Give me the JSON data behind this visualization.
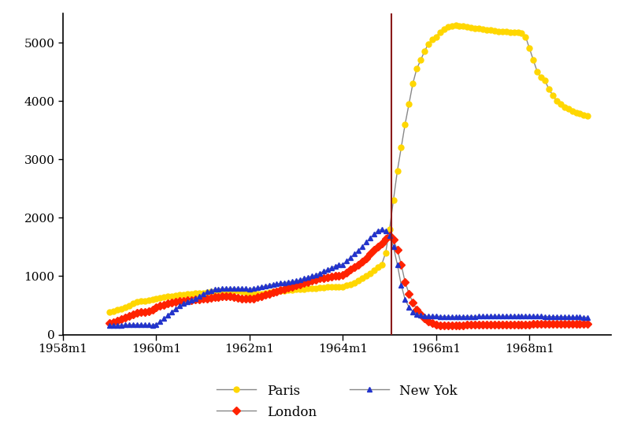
{
  "title": "",
  "ylim": [
    0,
    5500
  ],
  "xlim_start": 1958.0,
  "xlim_end": 1969.75,
  "vline_x": 1965.0417,
  "vline_color": "#8B1A1A",
  "background_color": "#ffffff",
  "xtick_labels": [
    "1958m1",
    "1960m1",
    "1962m1",
    "1964m1",
    "1966m1",
    "1968m1"
  ],
  "xtick_positions": [
    1958.0,
    1960.0,
    1962.0,
    1964.0,
    1966.0,
    1968.0
  ],
  "paris_color": "#FFD700",
  "london_color": "#FF2200",
  "newyork_color": "#2233CC",
  "line_color": "#888888",
  "marker_size_paris": 5,
  "marker_size_london": 5,
  "marker_size_newyork": 5,
  "paris_data": [
    [
      1959.0,
      390
    ],
    [
      1959.083,
      400
    ],
    [
      1959.167,
      420
    ],
    [
      1959.25,
      440
    ],
    [
      1959.333,
      460
    ],
    [
      1959.417,
      490
    ],
    [
      1959.5,
      530
    ],
    [
      1959.583,
      560
    ],
    [
      1959.667,
      570
    ],
    [
      1959.75,
      580
    ],
    [
      1959.833,
      590
    ],
    [
      1959.917,
      600
    ],
    [
      1960.0,
      620
    ],
    [
      1960.083,
      630
    ],
    [
      1960.167,
      640
    ],
    [
      1960.25,
      650
    ],
    [
      1960.333,
      660
    ],
    [
      1960.417,
      670
    ],
    [
      1960.5,
      680
    ],
    [
      1960.583,
      680
    ],
    [
      1960.667,
      690
    ],
    [
      1960.75,
      700
    ],
    [
      1960.833,
      710
    ],
    [
      1960.917,
      710
    ],
    [
      1961.0,
      710
    ],
    [
      1961.083,
      720
    ],
    [
      1961.167,
      730
    ],
    [
      1961.25,
      740
    ],
    [
      1961.333,
      745
    ],
    [
      1961.417,
      750
    ],
    [
      1961.5,
      755
    ],
    [
      1961.583,
      755
    ],
    [
      1961.667,
      750
    ],
    [
      1961.75,
      745
    ],
    [
      1961.833,
      740
    ],
    [
      1961.917,
      720
    ],
    [
      1962.0,
      700
    ],
    [
      1962.083,
      690
    ],
    [
      1962.167,
      690
    ],
    [
      1962.25,
      700
    ],
    [
      1962.333,
      710
    ],
    [
      1962.417,
      720
    ],
    [
      1962.5,
      730
    ],
    [
      1962.583,
      740
    ],
    [
      1962.667,
      750
    ],
    [
      1962.75,
      755
    ],
    [
      1962.833,
      760
    ],
    [
      1962.917,
      765
    ],
    [
      1963.0,
      770
    ],
    [
      1963.083,
      775
    ],
    [
      1963.167,
      780
    ],
    [
      1963.25,
      785
    ],
    [
      1963.333,
      790
    ],
    [
      1963.417,
      795
    ],
    [
      1963.5,
      800
    ],
    [
      1963.583,
      805
    ],
    [
      1963.667,
      810
    ],
    [
      1963.75,
      815
    ],
    [
      1963.833,
      820
    ],
    [
      1963.917,
      820
    ],
    [
      1964.0,
      820
    ],
    [
      1964.083,
      840
    ],
    [
      1964.167,
      860
    ],
    [
      1964.25,
      890
    ],
    [
      1964.333,
      920
    ],
    [
      1964.417,
      960
    ],
    [
      1964.5,
      1000
    ],
    [
      1964.583,
      1050
    ],
    [
      1964.667,
      1100
    ],
    [
      1964.75,
      1150
    ],
    [
      1964.833,
      1200
    ],
    [
      1964.917,
      1400
    ],
    [
      1965.0,
      1800
    ],
    [
      1965.083,
      2300
    ],
    [
      1965.167,
      2800
    ],
    [
      1965.25,
      3200
    ],
    [
      1965.333,
      3600
    ],
    [
      1965.417,
      3950
    ],
    [
      1965.5,
      4300
    ],
    [
      1965.583,
      4550
    ],
    [
      1965.667,
      4700
    ],
    [
      1965.75,
      4850
    ],
    [
      1965.833,
      4980
    ],
    [
      1965.917,
      5050
    ],
    [
      1966.0,
      5100
    ],
    [
      1966.083,
      5180
    ],
    [
      1966.167,
      5230
    ],
    [
      1966.25,
      5270
    ],
    [
      1966.333,
      5290
    ],
    [
      1966.417,
      5300
    ],
    [
      1966.5,
      5290
    ],
    [
      1966.583,
      5280
    ],
    [
      1966.667,
      5270
    ],
    [
      1966.75,
      5260
    ],
    [
      1966.833,
      5250
    ],
    [
      1966.917,
      5240
    ],
    [
      1967.0,
      5230
    ],
    [
      1967.083,
      5220
    ],
    [
      1967.167,
      5210
    ],
    [
      1967.25,
      5200
    ],
    [
      1967.333,
      5195
    ],
    [
      1967.417,
      5190
    ],
    [
      1967.5,
      5185
    ],
    [
      1967.583,
      5180
    ],
    [
      1967.667,
      5175
    ],
    [
      1967.75,
      5170
    ],
    [
      1967.833,
      5165
    ],
    [
      1967.917,
      5100
    ],
    [
      1968.0,
      4900
    ],
    [
      1968.083,
      4700
    ],
    [
      1968.167,
      4500
    ],
    [
      1968.25,
      4400
    ],
    [
      1968.333,
      4350
    ],
    [
      1968.417,
      4200
    ],
    [
      1968.5,
      4100
    ],
    [
      1968.583,
      4000
    ],
    [
      1968.667,
      3950
    ],
    [
      1968.75,
      3900
    ],
    [
      1968.833,
      3870
    ],
    [
      1968.917,
      3830
    ],
    [
      1969.0,
      3800
    ],
    [
      1969.083,
      3780
    ],
    [
      1969.167,
      3760
    ],
    [
      1969.25,
      3750
    ]
  ],
  "london_data": [
    [
      1959.0,
      200
    ],
    [
      1959.083,
      210
    ],
    [
      1959.167,
      230
    ],
    [
      1959.25,
      260
    ],
    [
      1959.333,
      290
    ],
    [
      1959.417,
      320
    ],
    [
      1959.5,
      350
    ],
    [
      1959.583,
      370
    ],
    [
      1959.667,
      380
    ],
    [
      1959.75,
      390
    ],
    [
      1959.833,
      400
    ],
    [
      1959.917,
      420
    ],
    [
      1960.0,
      460
    ],
    [
      1960.083,
      490
    ],
    [
      1960.167,
      510
    ],
    [
      1960.25,
      530
    ],
    [
      1960.333,
      550
    ],
    [
      1960.417,
      560
    ],
    [
      1960.5,
      570
    ],
    [
      1960.583,
      580
    ],
    [
      1960.667,
      585
    ],
    [
      1960.75,
      590
    ],
    [
      1960.833,
      595
    ],
    [
      1960.917,
      600
    ],
    [
      1961.0,
      610
    ],
    [
      1961.083,
      620
    ],
    [
      1961.167,
      630
    ],
    [
      1961.25,
      640
    ],
    [
      1961.333,
      645
    ],
    [
      1961.417,
      650
    ],
    [
      1961.5,
      655
    ],
    [
      1961.583,
      650
    ],
    [
      1961.667,
      640
    ],
    [
      1961.75,
      630
    ],
    [
      1961.833,
      620
    ],
    [
      1961.917,
      610
    ],
    [
      1962.0,
      610
    ],
    [
      1962.083,
      620
    ],
    [
      1962.167,
      640
    ],
    [
      1962.25,
      660
    ],
    [
      1962.333,
      680
    ],
    [
      1962.417,
      700
    ],
    [
      1962.5,
      720
    ],
    [
      1962.583,
      740
    ],
    [
      1962.667,
      760
    ],
    [
      1962.75,
      780
    ],
    [
      1962.833,
      800
    ],
    [
      1962.917,
      820
    ],
    [
      1963.0,
      840
    ],
    [
      1963.083,
      860
    ],
    [
      1963.167,
      880
    ],
    [
      1963.25,
      900
    ],
    [
      1963.333,
      920
    ],
    [
      1963.417,
      940
    ],
    [
      1963.5,
      960
    ],
    [
      1963.583,
      970
    ],
    [
      1963.667,
      980
    ],
    [
      1963.75,
      990
    ],
    [
      1963.833,
      1000
    ],
    [
      1963.917,
      1010
    ],
    [
      1964.0,
      1020
    ],
    [
      1964.083,
      1060
    ],
    [
      1964.167,
      1110
    ],
    [
      1964.25,
      1160
    ],
    [
      1964.333,
      1200
    ],
    [
      1964.417,
      1250
    ],
    [
      1964.5,
      1300
    ],
    [
      1964.583,
      1380
    ],
    [
      1964.667,
      1450
    ],
    [
      1964.75,
      1500
    ],
    [
      1964.833,
      1560
    ],
    [
      1964.917,
      1640
    ],
    [
      1965.0,
      1700
    ],
    [
      1965.083,
      1620
    ],
    [
      1965.167,
      1450
    ],
    [
      1965.25,
      1200
    ],
    [
      1965.333,
      900
    ],
    [
      1965.417,
      700
    ],
    [
      1965.5,
      550
    ],
    [
      1965.583,
      430
    ],
    [
      1965.667,
      340
    ],
    [
      1965.75,
      270
    ],
    [
      1965.833,
      220
    ],
    [
      1965.917,
      190
    ],
    [
      1966.0,
      170
    ],
    [
      1966.083,
      160
    ],
    [
      1966.167,
      155
    ],
    [
      1966.25,
      155
    ],
    [
      1966.333,
      155
    ],
    [
      1966.417,
      155
    ],
    [
      1966.5,
      160
    ],
    [
      1966.583,
      160
    ],
    [
      1966.667,
      162
    ],
    [
      1966.75,
      165
    ],
    [
      1966.833,
      165
    ],
    [
      1966.917,
      165
    ],
    [
      1967.0,
      168
    ],
    [
      1967.083,
      170
    ],
    [
      1967.167,
      172
    ],
    [
      1967.25,
      172
    ],
    [
      1967.333,
      173
    ],
    [
      1967.417,
      173
    ],
    [
      1967.5,
      173
    ],
    [
      1967.583,
      174
    ],
    [
      1967.667,
      174
    ],
    [
      1967.75,
      175
    ],
    [
      1967.833,
      175
    ],
    [
      1967.917,
      175
    ],
    [
      1968.0,
      175
    ],
    [
      1968.083,
      176
    ],
    [
      1968.167,
      176
    ],
    [
      1968.25,
      177
    ],
    [
      1968.333,
      178
    ],
    [
      1968.417,
      178
    ],
    [
      1968.5,
      178
    ],
    [
      1968.583,
      179
    ],
    [
      1968.667,
      180
    ],
    [
      1968.75,
      180
    ],
    [
      1968.833,
      180
    ],
    [
      1968.917,
      180
    ],
    [
      1969.0,
      182
    ],
    [
      1969.083,
      183
    ],
    [
      1969.167,
      184
    ],
    [
      1969.25,
      185
    ]
  ],
  "newyork_data": [
    [
      1959.0,
      155
    ],
    [
      1959.083,
      155
    ],
    [
      1959.167,
      158
    ],
    [
      1959.25,
      160
    ],
    [
      1959.333,
      165
    ],
    [
      1959.417,
      168
    ],
    [
      1959.5,
      170
    ],
    [
      1959.583,
      170
    ],
    [
      1959.667,
      168
    ],
    [
      1959.75,
      165
    ],
    [
      1959.833,
      162
    ],
    [
      1959.917,
      160
    ],
    [
      1960.0,
      175
    ],
    [
      1960.083,
      220
    ],
    [
      1960.167,
      270
    ],
    [
      1960.25,
      330
    ],
    [
      1960.333,
      390
    ],
    [
      1960.417,
      440
    ],
    [
      1960.5,
      490
    ],
    [
      1960.583,
      530
    ],
    [
      1960.667,
      560
    ],
    [
      1960.75,
      590
    ],
    [
      1960.833,
      620
    ],
    [
      1960.917,
      650
    ],
    [
      1961.0,
      700
    ],
    [
      1961.083,
      730
    ],
    [
      1961.167,
      750
    ],
    [
      1961.25,
      770
    ],
    [
      1961.333,
      780
    ],
    [
      1961.417,
      785
    ],
    [
      1961.5,
      790
    ],
    [
      1961.583,
      790
    ],
    [
      1961.667,
      790
    ],
    [
      1961.75,
      790
    ],
    [
      1961.833,
      788
    ],
    [
      1961.917,
      785
    ],
    [
      1962.0,
      780
    ],
    [
      1962.083,
      790
    ],
    [
      1962.167,
      800
    ],
    [
      1962.25,
      815
    ],
    [
      1962.333,
      830
    ],
    [
      1962.417,
      845
    ],
    [
      1962.5,
      860
    ],
    [
      1962.583,
      870
    ],
    [
      1962.667,
      880
    ],
    [
      1962.75,
      890
    ],
    [
      1962.833,
      900
    ],
    [
      1962.917,
      910
    ],
    [
      1963.0,
      920
    ],
    [
      1963.083,
      940
    ],
    [
      1963.167,
      960
    ],
    [
      1963.25,
      980
    ],
    [
      1963.333,
      1000
    ],
    [
      1963.417,
      1020
    ],
    [
      1963.5,
      1050
    ],
    [
      1963.583,
      1080
    ],
    [
      1963.667,
      1110
    ],
    [
      1963.75,
      1140
    ],
    [
      1963.833,
      1170
    ],
    [
      1963.917,
      1200
    ],
    [
      1964.0,
      1200
    ],
    [
      1964.083,
      1260
    ],
    [
      1964.167,
      1320
    ],
    [
      1964.25,
      1380
    ],
    [
      1964.333,
      1440
    ],
    [
      1964.417,
      1510
    ],
    [
      1964.5,
      1580
    ],
    [
      1964.583,
      1650
    ],
    [
      1964.667,
      1720
    ],
    [
      1964.75,
      1780
    ],
    [
      1964.833,
      1800
    ],
    [
      1964.917,
      1780
    ],
    [
      1965.0,
      1700
    ],
    [
      1965.083,
      1500
    ],
    [
      1965.167,
      1200
    ],
    [
      1965.25,
      850
    ],
    [
      1965.333,
      600
    ],
    [
      1965.417,
      470
    ],
    [
      1965.5,
      390
    ],
    [
      1965.583,
      350
    ],
    [
      1965.667,
      330
    ],
    [
      1965.75,
      320
    ],
    [
      1965.833,
      315
    ],
    [
      1965.917,
      315
    ],
    [
      1966.0,
      315
    ],
    [
      1966.083,
      310
    ],
    [
      1966.167,
      310
    ],
    [
      1966.25,
      305
    ],
    [
      1966.333,
      305
    ],
    [
      1966.417,
      305
    ],
    [
      1966.5,
      305
    ],
    [
      1966.583,
      308
    ],
    [
      1966.667,
      310
    ],
    [
      1966.75,
      310
    ],
    [
      1966.833,
      310
    ],
    [
      1966.917,
      312
    ],
    [
      1967.0,
      315
    ],
    [
      1967.083,
      315
    ],
    [
      1967.167,
      315
    ],
    [
      1967.25,
      316
    ],
    [
      1967.333,
      316
    ],
    [
      1967.417,
      316
    ],
    [
      1967.5,
      316
    ],
    [
      1967.583,
      316
    ],
    [
      1967.667,
      317
    ],
    [
      1967.75,
      317
    ],
    [
      1967.833,
      317
    ],
    [
      1967.917,
      317
    ],
    [
      1968.0,
      315
    ],
    [
      1968.083,
      313
    ],
    [
      1968.167,
      312
    ],
    [
      1968.25,
      312
    ],
    [
      1968.333,
      310
    ],
    [
      1968.417,
      308
    ],
    [
      1968.5,
      308
    ],
    [
      1968.583,
      307
    ],
    [
      1968.667,
      307
    ],
    [
      1968.75,
      305
    ],
    [
      1968.833,
      305
    ],
    [
      1968.917,
      302
    ],
    [
      1969.0,
      300
    ],
    [
      1969.083,
      298
    ],
    [
      1969.167,
      296
    ],
    [
      1969.25,
      294
    ]
  ]
}
